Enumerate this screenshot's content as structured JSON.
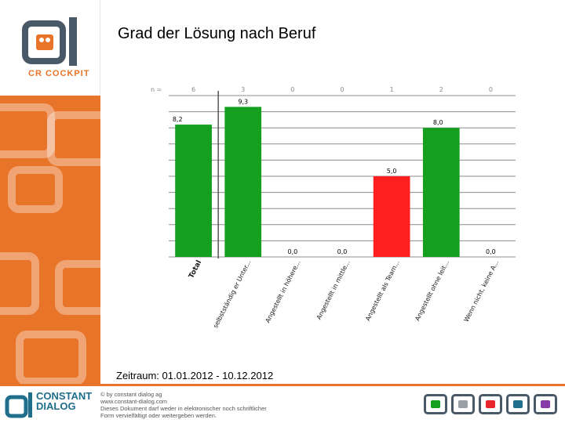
{
  "page": {
    "title": "Grad der Lösung nach Beruf"
  },
  "brand": {
    "logo_text": "CR COCKPIT",
    "company_line1": "CONSTANT",
    "company_line2": "DIALOG"
  },
  "legal": [
    "© by constant dialog ag",
    "www.constant-dialog.com",
    "Dieses Dokument darf weder in elektronischer noch schriftlicher",
    "Form vervielfältigt oder weitergeben werden."
  ],
  "footer": {
    "period": "Zeitraum: 01.01.2012 - 10.12.2012"
  },
  "colors": {
    "accent_orange": "#e8742a",
    "bar_green": "#14a01e",
    "bar_red": "#ff1f1f"
  },
  "chart_data": {
    "type": "bar",
    "title": "Grad der Lösung nach Beruf",
    "n_label": "n =",
    "categories": [
      "Total",
      "selbstständig er Unter...",
      "Angestellt in höhere...",
      "Angestellt in mittle...",
      "Angestellt als Team...",
      "Angestellt ohne leit...",
      "Wenn nicht, keine A..."
    ],
    "n_values": [
      "6",
      "3",
      "0",
      "0",
      "1",
      "2",
      "0"
    ],
    "values": [
      8.2,
      9.3,
      0.0,
      0.0,
      5.0,
      8.0,
      0.0
    ],
    "value_labels": [
      "8,2",
      "9,3",
      "0,0",
      "0,0",
      "5,0",
      "8,0",
      "0,0"
    ],
    "bar_colors": [
      "#14a01e",
      "#14a01e",
      "#14a01e",
      "#14a01e",
      "#ff1f1f",
      "#14a01e",
      "#14a01e"
    ],
    "ylim": [
      0,
      10
    ],
    "grid": true
  }
}
